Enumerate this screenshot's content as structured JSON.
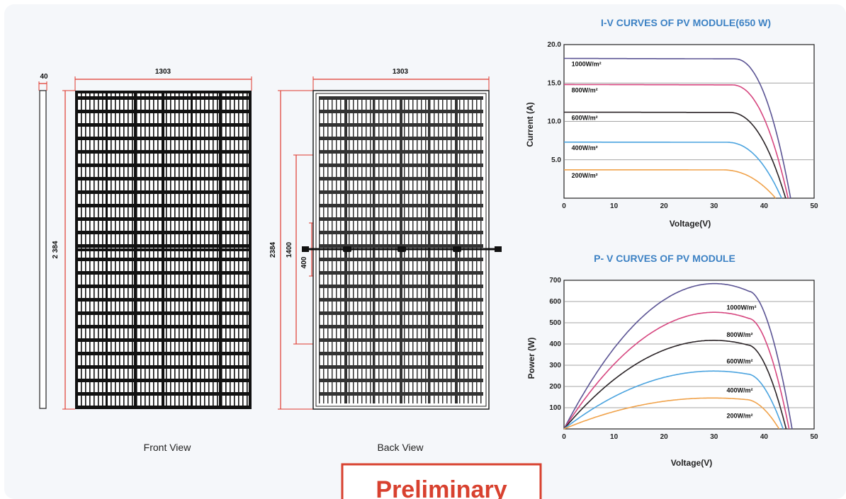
{
  "drawing": {
    "front_view_label": "Front View",
    "back_view_label": "Back View",
    "dim_thickness": "40",
    "dim_width_front": "1303",
    "dim_width_back": "1303",
    "dim_height_front": "2 384",
    "dim_height_back": "2384",
    "dim_1400": "1400",
    "dim_400": "400"
  },
  "stamp": {
    "text": "Preliminary",
    "color": "#d8412f"
  },
  "colors": {
    "c1000": "#5b5494",
    "c800": "#d6467f",
    "c600": "#2a2326",
    "c400": "#4aa3df",
    "c200": "#f0a24a",
    "title": "#3d82c4"
  },
  "chart_data": [
    {
      "type": "line",
      "title": "I-V CURVES OF PV MODULE(650 W)",
      "xlabel": "Voltage(V)",
      "ylabel": "Current (A)",
      "xlim": [
        0,
        50
      ],
      "ylim": [
        0,
        20
      ],
      "xticks": [
        "0",
        "10",
        "20",
        "30",
        "40",
        "50"
      ],
      "yticks": [
        "5.0",
        "10.0",
        "15.0",
        "20.0"
      ],
      "grid": true,
      "series": [
        {
          "name": "1000W/m²",
          "isc": 18.2,
          "knee": 34,
          "voc": 45.3
        },
        {
          "name": "800W/m²",
          "isc": 14.8,
          "knee": 33.5,
          "voc": 44.8
        },
        {
          "name": "600W/m²",
          "isc": 11.2,
          "knee": 33,
          "voc": 44.3
        },
        {
          "name": "400W/m²",
          "isc": 7.3,
          "knee": 32.5,
          "voc": 43.5
        },
        {
          "name": "200W/m²",
          "isc": 3.7,
          "knee": 31.5,
          "voc": 42.3
        }
      ]
    },
    {
      "type": "line",
      "title": "P- V CURVES OF PV MODULE",
      "xlabel": "Voltage(V)",
      "ylabel": "Power (W)",
      "xlim": [
        0,
        50
      ],
      "ylim": [
        0,
        700
      ],
      "xticks": [
        "0",
        "10",
        "20",
        "30",
        "40",
        "50"
      ],
      "yticks": [
        "100",
        "200",
        "300",
        "400",
        "500",
        "600",
        "700"
      ],
      "grid": true,
      "series": [
        {
          "name": "1000W/m²",
          "pmax": 648,
          "vmp": 37,
          "voc": 45.6
        },
        {
          "name": "800W/m²",
          "pmax": 520,
          "vmp": 37,
          "voc": 45.0
        },
        {
          "name": "600W/m²",
          "pmax": 395,
          "vmp": 36.8,
          "voc": 44.4
        },
        {
          "name": "400W/m²",
          "pmax": 258,
          "vmp": 36.8,
          "voc": 43.8
        },
        {
          "name": "200W/m²",
          "pmax": 138,
          "vmp": 36.5,
          "voc": 43.0
        }
      ]
    }
  ]
}
